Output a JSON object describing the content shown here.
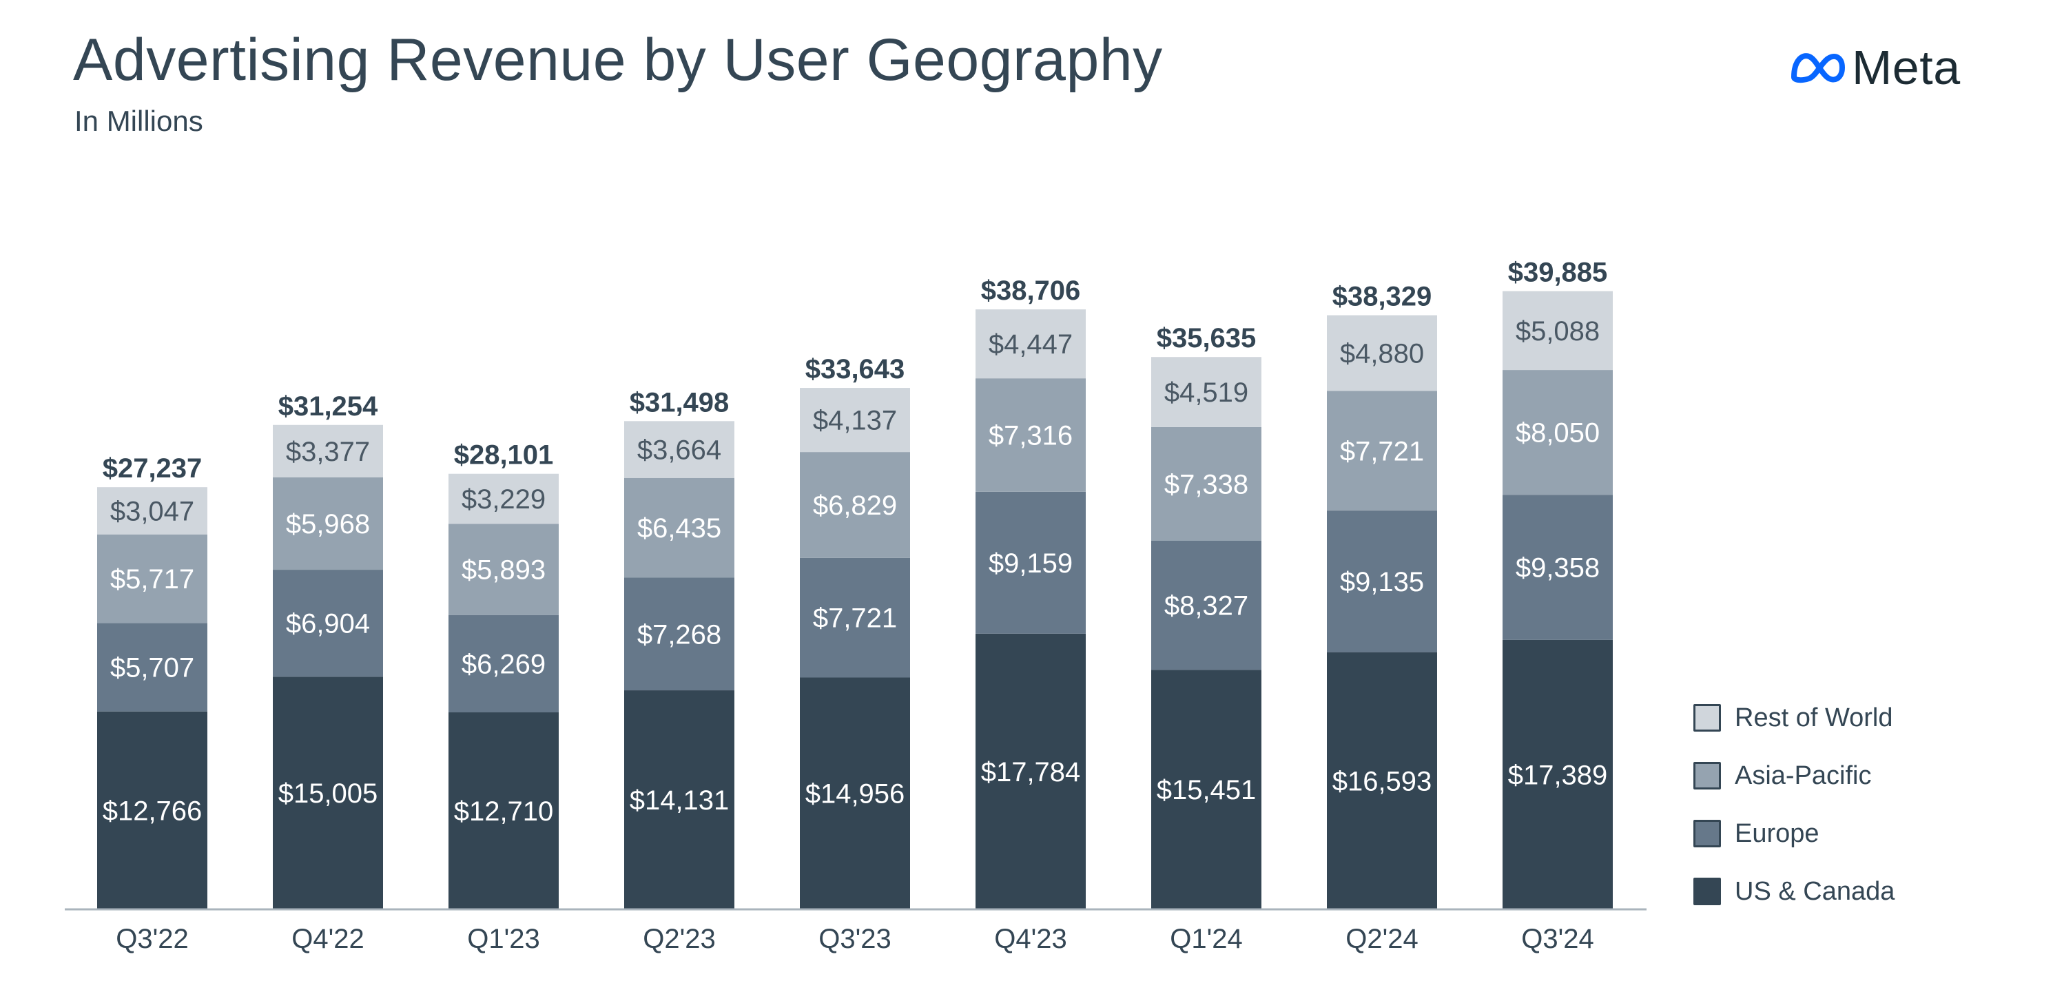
{
  "header": {
    "title": "Advertising Revenue by User Geography",
    "subtitle": "In Millions"
  },
  "brand": {
    "name": "Meta",
    "logo_icon": "meta-infinity-icon",
    "logo_color": "#0866ff"
  },
  "colors": {
    "us_canada": "#344654",
    "europe": "#66788a",
    "asia_pacific": "#95a3b0",
    "rest_of_world": "#d0d6dc",
    "text": "#344654",
    "axis": "#aab4bc"
  },
  "legend": [
    {
      "label": "Rest of World",
      "color": "#d0d6dc"
    },
    {
      "label": "Asia-Pacific",
      "color": "#95a3b0"
    },
    {
      "label": "Europe",
      "color": "#66788a"
    },
    {
      "label": "US & Canada",
      "color": "#344654"
    }
  ],
  "chart_data": {
    "type": "bar",
    "stacked": true,
    "title": "Advertising Revenue by User Geography",
    "subtitle": "In Millions",
    "categories": [
      "Q3'22",
      "Q4'22",
      "Q1'23",
      "Q2'23",
      "Q3'23",
      "Q4'23",
      "Q1'24",
      "Q2'24",
      "Q3'24"
    ],
    "series": [
      {
        "name": "US & Canada",
        "color": "#344654",
        "label_color": "#ffffff",
        "values": [
          12766,
          15005,
          12710,
          14131,
          14956,
          17784,
          15451,
          16593,
          17389
        ],
        "labels": [
          "$12,766",
          "$15,005",
          "$12,710",
          "$14,131",
          "$14,956",
          "$17,784",
          "$15,451",
          "$16,593",
          "$17,389"
        ]
      },
      {
        "name": "Europe",
        "color": "#66788a",
        "label_color": "#ffffff",
        "values": [
          5707,
          6904,
          6269,
          7268,
          7721,
          9159,
          8327,
          9135,
          9358
        ],
        "labels": [
          "$5,707",
          "$6,904",
          "$6,269",
          "$7,268",
          "$7,721",
          "$9,159",
          "$8,327",
          "$9,135",
          "$9,358"
        ]
      },
      {
        "name": "Asia-Pacific",
        "color": "#95a3b0",
        "label_color": "#ffffff",
        "values": [
          5717,
          5968,
          5893,
          6435,
          6829,
          7316,
          7338,
          7721,
          8050
        ],
        "labels": [
          "$5,717",
          "$5,968",
          "$5,893",
          "$6,435",
          "$6,829",
          "$7,316",
          "$7,338",
          "$7,721",
          "$8,050"
        ]
      },
      {
        "name": "Rest of World",
        "color": "#d0d6dc",
        "label_color": "#4a5864",
        "values": [
          3047,
          3377,
          3229,
          3664,
          4137,
          4447,
          4519,
          4880,
          5088
        ],
        "labels": [
          "$3,047",
          "$3,377",
          "$3,229",
          "$3,664",
          "$4,137",
          "$4,447",
          "$4,519",
          "$4,880",
          "$5,088"
        ]
      }
    ],
    "totals": [
      27237,
      31254,
      28101,
      31498,
      33643,
      38706,
      35635,
      38329,
      39885
    ],
    "total_labels": [
      "$27,237",
      "$31,254",
      "$28,101",
      "$31,498",
      "$33,643",
      "$38,706",
      "$35,635",
      "$38,329",
      "$39,885"
    ],
    "ylim": [
      0,
      40000
    ],
    "grid": false,
    "legend_position": "bottom-right"
  }
}
